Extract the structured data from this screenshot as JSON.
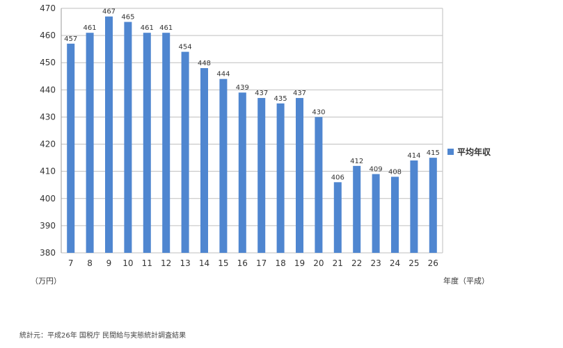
{
  "chart_data": {
    "type": "bar",
    "categories": [
      "7",
      "8",
      "9",
      "10",
      "11",
      "12",
      "13",
      "14",
      "15",
      "16",
      "17",
      "18",
      "19",
      "20",
      "21",
      "22",
      "23",
      "24",
      "25",
      "26"
    ],
    "series": [
      {
        "name": "平均年収",
        "values": [
          457,
          461,
          467,
          465,
          461,
          461,
          454,
          448,
          444,
          439,
          437,
          435,
          437,
          430,
          406,
          412,
          409,
          408,
          414,
          415
        ]
      }
    ],
    "ylim": [
      380,
      470
    ],
    "yticks": [
      380,
      390,
      400,
      410,
      420,
      430,
      440,
      450,
      460,
      470
    ],
    "ylabel": "（万円）",
    "xlabel": "年度（平成）",
    "grid": true,
    "legend_position": "right",
    "data_labels": true
  },
  "colors": {
    "bar": "#4F86D0",
    "grid": "#BFBFBF",
    "axis": "#999999"
  },
  "source": "統計元：平成26年 国税庁 民間給与実態統計調査結果"
}
